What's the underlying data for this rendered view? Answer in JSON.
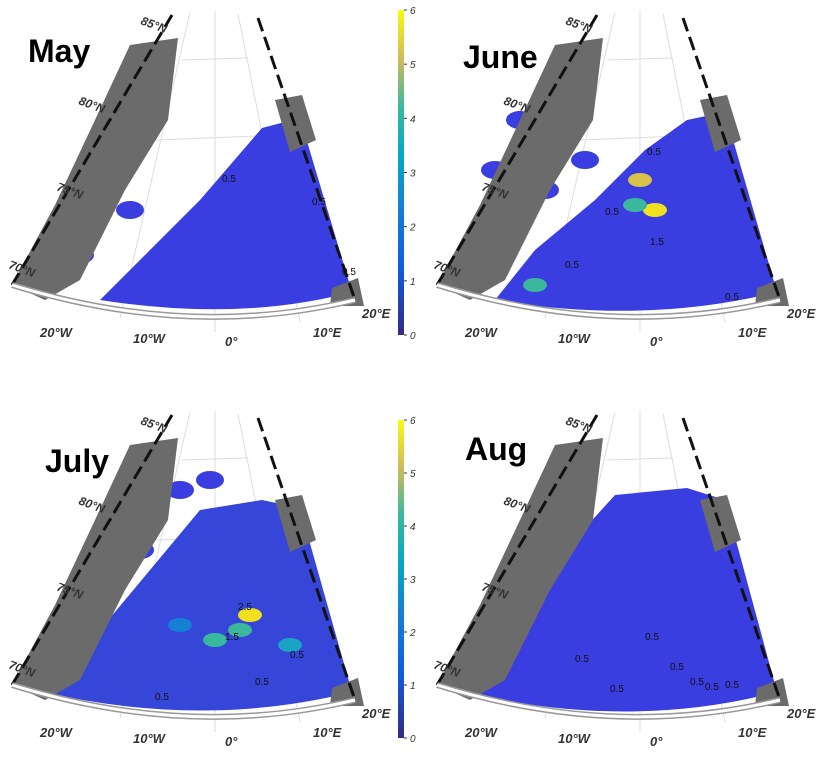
{
  "panels": [
    {
      "title": "May",
      "lat_labels": [
        "85°N",
        "80°N",
        "75°N",
        "70°N"
      ],
      "lon_labels": [
        "20°W",
        "10°W",
        "0°",
        "10°E",
        "20°E"
      ],
      "contour_labels": [
        "0.5",
        "0.5",
        "0.5"
      ]
    },
    {
      "title": "June",
      "lat_labels": [
        "85°N",
        "80°N",
        "75°N",
        "70°N"
      ],
      "lon_labels": [
        "20°W",
        "10°W",
        "0°",
        "10°E",
        "20°E"
      ],
      "contour_labels": [
        "0.5",
        "0.5",
        "0.5",
        "1.5",
        "0.5"
      ]
    },
    {
      "title": "July",
      "lat_labels": [
        "85°N",
        "80°N",
        "75°N",
        "70°N"
      ],
      "lon_labels": [
        "20°W",
        "10°W",
        "0°",
        "10°E",
        "20°E"
      ],
      "contour_labels": [
        "2.5",
        "1.5",
        "0.5",
        "0.5",
        "0.5"
      ]
    },
    {
      "title": "Aug",
      "lat_labels": [
        "85°N",
        "80°N",
        "75°N",
        "70°N"
      ],
      "lon_labels": [
        "20°W",
        "10°W",
        "0°",
        "10°E",
        "20°E"
      ],
      "contour_labels": [
        "0.5",
        "0.5",
        "0.5",
        "0.5",
        "0.5",
        "0.5",
        "0.5"
      ]
    }
  ],
  "colorbars": [
    {
      "ticks": [
        "0",
        "1",
        "2",
        "3",
        "4",
        "5",
        "6"
      ]
    },
    {
      "ticks": [
        "0",
        "1",
        "2",
        "3",
        "4",
        "5",
        "6"
      ]
    }
  ]
}
